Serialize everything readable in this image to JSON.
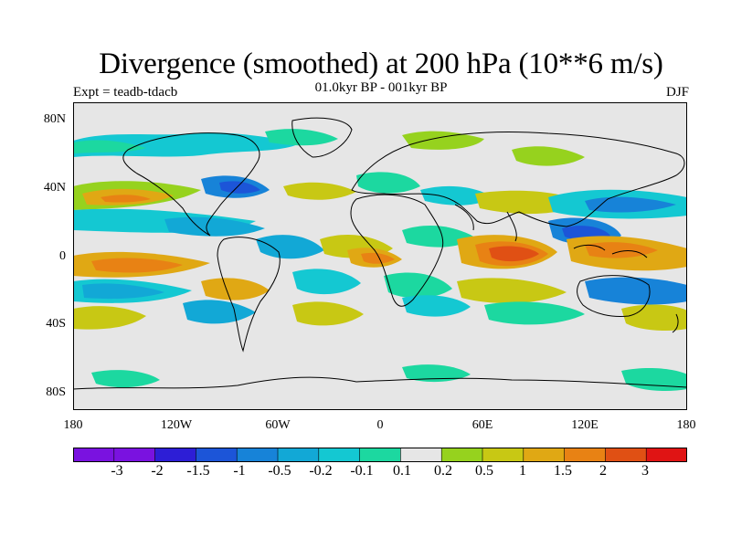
{
  "title": "Divergence (smoothed) at 200 hPa (10**6 m/s)",
  "subtitle": "01.0kyr BP - 001kyr BP",
  "experiment": "Expt = teadb-tdacb",
  "season": "DJF",
  "map": {
    "projection": "cylindrical equidistant",
    "lon_range": [
      -180,
      180
    ],
    "lat_range": [
      -90,
      90
    ],
    "lat_labels": [
      "80N",
      "40N",
      "0",
      "40S",
      "80S"
    ],
    "lon_labels": [
      "180",
      "120W",
      "60W",
      "0",
      "60E",
      "120E",
      "180"
    ]
  },
  "colorbar": {
    "labels": [
      "-3",
      "-2",
      "-1.5",
      "-1",
      "-0.5",
      "-0.2",
      "-0.1",
      "0.1",
      "0.2",
      "0.5",
      "1",
      "1.5",
      "2",
      "3"
    ],
    "colors": [
      "#7a12e0",
      "#2d1ed6",
      "#1c55d8",
      "#1783d8",
      "#12a8d6",
      "#14c8d2",
      "#1cd8a0",
      "#e6e6e6",
      "#96d21e",
      "#c8c814",
      "#e0a814",
      "#e88214",
      "#e05014",
      "#e01414"
    ]
  },
  "colors": {
    "background": "#e6e6e6",
    "border": "#000000",
    "coastline": "#000000"
  }
}
